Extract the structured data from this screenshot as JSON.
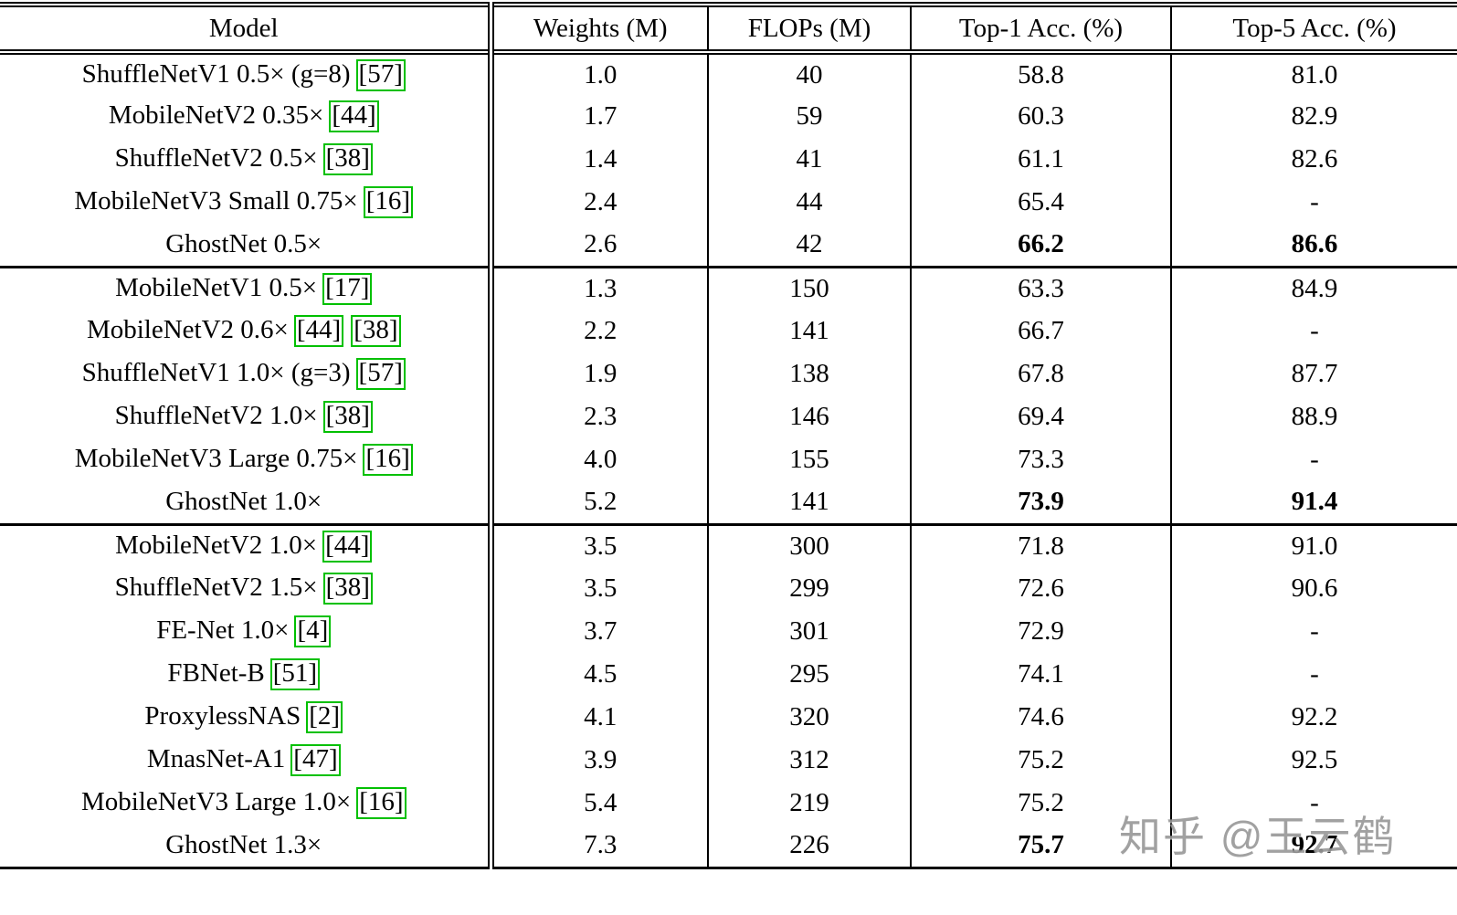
{
  "table": {
    "headers": [
      "Model",
      "Weights (M)",
      "FLOPs (M)",
      "Top-1 Acc. (%)",
      "Top-5 Acc. (%)"
    ],
    "groups": [
      {
        "rows": [
          {
            "model": "ShuffleNetV1 0.5× (g=8)",
            "cites": [
              "57"
            ],
            "weights": "1.0",
            "flops": "40",
            "top1": "58.8",
            "top5": "81.0",
            "bold": false
          },
          {
            "model": "MobileNetV2 0.35×",
            "cites": [
              "44"
            ],
            "weights": "1.7",
            "flops": "59",
            "top1": "60.3",
            "top5": "82.9",
            "bold": false
          },
          {
            "model": "ShuffleNetV2 0.5×",
            "cites": [
              "38"
            ],
            "weights": "1.4",
            "flops": "41",
            "top1": "61.1",
            "top5": "82.6",
            "bold": false
          },
          {
            "model": "MobileNetV3 Small 0.75×",
            "cites": [
              "16"
            ],
            "weights": "2.4",
            "flops": "44",
            "top1": "65.4",
            "top5": "-",
            "bold": false
          },
          {
            "model": "GhostNet 0.5×",
            "cites": [],
            "weights": "2.6",
            "flops": "42",
            "top1": "66.2",
            "top5": "86.6",
            "bold": true
          }
        ]
      },
      {
        "rows": [
          {
            "model": "MobileNetV1 0.5×",
            "cites": [
              "17"
            ],
            "weights": "1.3",
            "flops": "150",
            "top1": "63.3",
            "top5": "84.9",
            "bold": false
          },
          {
            "model": "MobileNetV2 0.6×",
            "cites": [
              "44",
              "38"
            ],
            "weights": "2.2",
            "flops": "141",
            "top1": "66.7",
            "top5": "-",
            "bold": false
          },
          {
            "model": "ShuffleNetV1 1.0× (g=3)",
            "cites": [
              "57"
            ],
            "weights": "1.9",
            "flops": "138",
            "top1": "67.8",
            "top5": "87.7",
            "bold": false
          },
          {
            "model": "ShuffleNetV2 1.0×",
            "cites": [
              "38"
            ],
            "weights": "2.3",
            "flops": "146",
            "top1": "69.4",
            "top5": "88.9",
            "bold": false
          },
          {
            "model": "MobileNetV3 Large 0.75×",
            "cites": [
              "16"
            ],
            "weights": "4.0",
            "flops": "155",
            "top1": "73.3",
            "top5": "-",
            "bold": false
          },
          {
            "model": "GhostNet 1.0×",
            "cites": [],
            "weights": "5.2",
            "flops": "141",
            "top1": "73.9",
            "top5": "91.4",
            "bold": true
          }
        ]
      },
      {
        "rows": [
          {
            "model": "MobileNetV2 1.0×",
            "cites": [
              "44"
            ],
            "weights": "3.5",
            "flops": "300",
            "top1": "71.8",
            "top5": "91.0",
            "bold": false
          },
          {
            "model": "ShuffleNetV2 1.5×",
            "cites": [
              "38"
            ],
            "weights": "3.5",
            "flops": "299",
            "top1": "72.6",
            "top5": "90.6",
            "bold": false
          },
          {
            "model": "FE-Net 1.0×",
            "cites": [
              "4"
            ],
            "weights": "3.7",
            "flops": "301",
            "top1": "72.9",
            "top5": "-",
            "bold": false
          },
          {
            "model": "FBNet-B",
            "cites": [
              "51"
            ],
            "weights": "4.5",
            "flops": "295",
            "top1": "74.1",
            "top5": "-",
            "bold": false
          },
          {
            "model": "ProxylessNAS",
            "cites": [
              "2"
            ],
            "weights": "4.1",
            "flops": "320",
            "top1": "74.6",
            "top5": "92.2",
            "bold": false
          },
          {
            "model": "MnasNet-A1",
            "cites": [
              "47"
            ],
            "weights": "3.9",
            "flops": "312",
            "top1": "75.2",
            "top5": "92.5",
            "bold": false
          },
          {
            "model": "MobileNetV3 Large 1.0×",
            "cites": [
              "16"
            ],
            "weights": "5.4",
            "flops": "219",
            "top1": "75.2",
            "top5": "-",
            "bold": false
          },
          {
            "model": "GhostNet 1.3×",
            "cites": [],
            "weights": "7.3",
            "flops": "226",
            "top1": "75.7",
            "top5": "92.7",
            "bold": true
          }
        ]
      }
    ]
  },
  "watermark": {
    "text": "知乎 @王云鹤"
  },
  "colors": {
    "citation_box": "#00c000",
    "line": "#000000",
    "watermark": "#878787"
  }
}
